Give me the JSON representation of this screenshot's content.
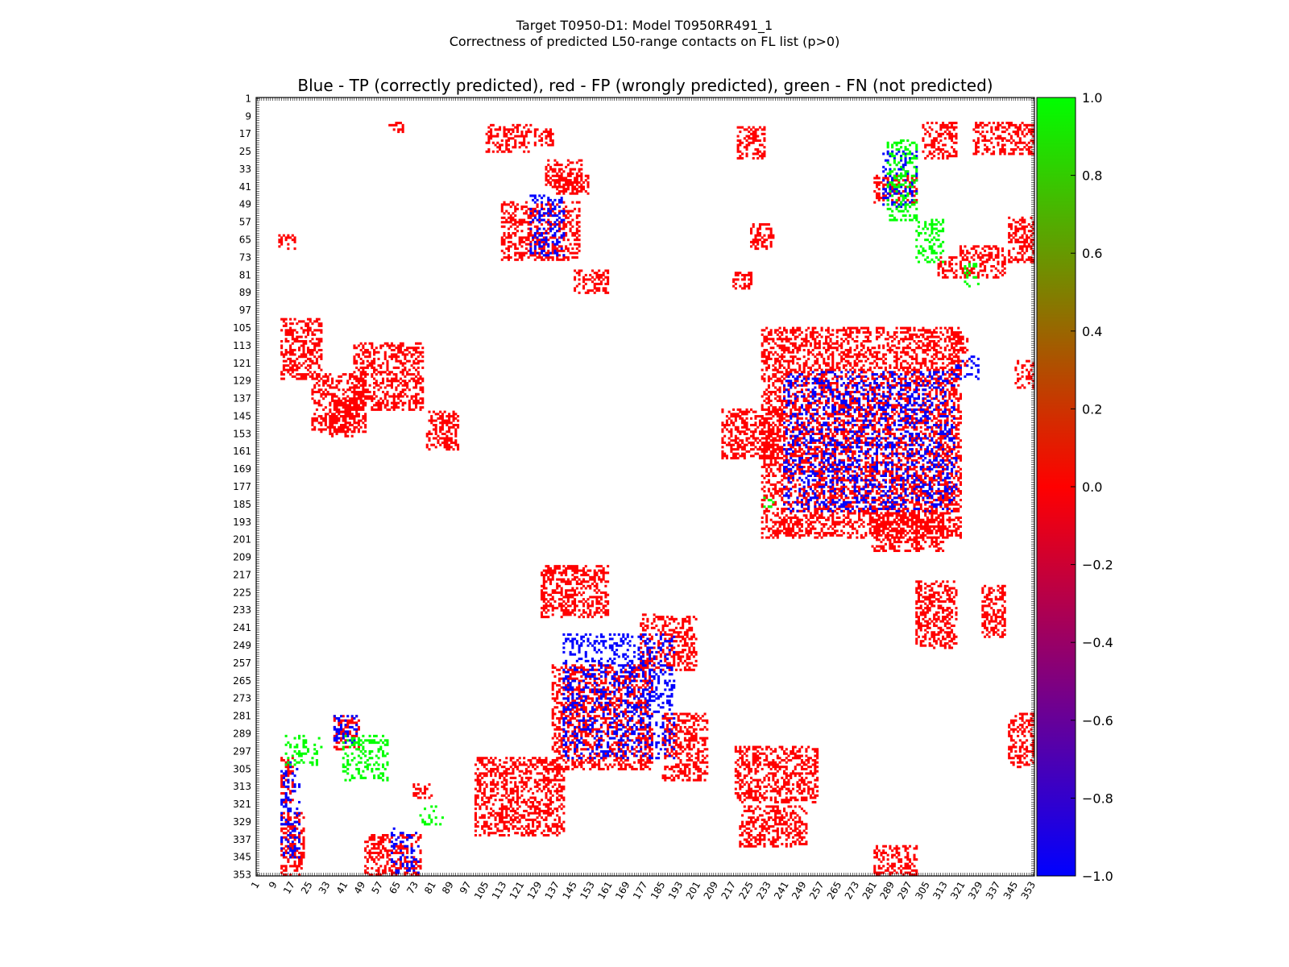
{
  "figure": {
    "title_line1": "Target T0950-D1: Model T0950RR491_1",
    "title_line2": "Correctness of predicted L50-range contacts on FL list (p>0)"
  },
  "colors": {
    "tp": "#0000ff",
    "fp": "#ff0000",
    "fn": "#00ff00",
    "frame": "#000000"
  },
  "chart_data": {
    "type": "heatmap",
    "title": "Blue - TP (correctly predicted), red - FP (wrongly predicted), green - FN (not predicted)",
    "xlabel": "",
    "ylabel": "",
    "xlim": [
      1,
      353
    ],
    "ylim": [
      1,
      353
    ],
    "y_axis_inverted": true,
    "tick_labels": [
      "1",
      "9",
      "17",
      "25",
      "33",
      "41",
      "49",
      "57",
      "65",
      "73",
      "81",
      "89",
      "97",
      "105",
      "113",
      "121",
      "129",
      "137",
      "145",
      "153",
      "161",
      "169",
      "177",
      "185",
      "193",
      "201",
      "209",
      "217",
      "225",
      "233",
      "241",
      "249",
      "257",
      "265",
      "273",
      "281",
      "289",
      "297",
      "305",
      "313",
      "321",
      "329",
      "337",
      "345",
      "353"
    ],
    "colorbar": {
      "min": -1.0,
      "max": 1.0,
      "ticks": [
        "1.0",
        "0.8",
        "0.6",
        "0.4",
        "0.2",
        "0.0",
        "−0.2",
        "−0.4",
        "−0.6",
        "−0.8",
        "−1.0"
      ],
      "colors": [
        "#0000ff",
        "#ff0000",
        "#00ff00"
      ]
    },
    "legend": [
      "TP (correctly predicted)",
      "FP (wrongly predicted)",
      "FN (not predicted)"
    ],
    "value_meaning": {
      "TP": -1,
      "FP": 0,
      "FN": 1
    },
    "regions": [
      {
        "kind": "FP",
        "x": [
          61,
          67
        ],
        "y": [
          12,
          16
        ]
      },
      {
        "kind": "FP",
        "x": [
          105,
          125
        ],
        "y": [
          13,
          25
        ]
      },
      {
        "kind": "FP",
        "x": [
          127,
          135
        ],
        "y": [
          15,
          22
        ]
      },
      {
        "kind": "FP",
        "x": [
          219,
          231
        ],
        "y": [
          14,
          28
        ]
      },
      {
        "kind": "FP",
        "x": [
          303,
          318
        ],
        "y": [
          12,
          28
        ]
      },
      {
        "kind": "FP",
        "x": [
          326,
          353
        ],
        "y": [
          12,
          26
        ]
      },
      {
        "kind": "FP",
        "x": [
          132,
          148
        ],
        "y": [
          29,
          42
        ]
      },
      {
        "kind": "FP",
        "x": [
          137,
          151
        ],
        "y": [
          36,
          44
        ]
      },
      {
        "kind": "FP",
        "x": [
          281,
          300
        ],
        "y": [
          36,
          48
        ]
      },
      {
        "kind": "FP",
        "x": [
          112,
          147
        ],
        "y": [
          48,
          74
        ]
      },
      {
        "kind": "FP",
        "x": [
          11,
          18
        ],
        "y": [
          63,
          69
        ]
      },
      {
        "kind": "FP",
        "x": [
          342,
          353
        ],
        "y": [
          55,
          75
        ]
      },
      {
        "kind": "FP",
        "x": [
          320,
          340
        ],
        "y": [
          68,
          82
        ]
      },
      {
        "kind": "FP",
        "x": [
          310,
          318
        ],
        "y": [
          73,
          82
        ]
      },
      {
        "kind": "FP",
        "x": [
          145,
          160
        ],
        "y": [
          79,
          89
        ]
      },
      {
        "kind": "FP",
        "x": [
          217,
          225
        ],
        "y": [
          80,
          87
        ]
      },
      {
        "kind": "FP",
        "x": [
          225,
          235
        ],
        "y": [
          58,
          69
        ]
      },
      {
        "kind": "FP",
        "x": [
          12,
          30
        ],
        "y": [
          101,
          128
        ]
      },
      {
        "kind": "FP",
        "x": [
          26,
          50
        ],
        "y": [
          126,
          152
        ]
      },
      {
        "kind": "FP",
        "x": [
          34,
          45
        ],
        "y": [
          137,
          154
        ]
      },
      {
        "kind": "FP",
        "x": [
          45,
          76
        ],
        "y": [
          112,
          142
        ]
      },
      {
        "kind": "FP",
        "x": [
          78,
          92
        ],
        "y": [
          143,
          160
        ]
      },
      {
        "kind": "FP",
        "x": [
          212,
          238
        ],
        "y": [
          142,
          164
        ]
      },
      {
        "kind": "FP",
        "x": [
          315,
          323
        ],
        "y": [
          108,
          122
        ]
      },
      {
        "kind": "FP",
        "x": [
          345,
          353
        ],
        "y": [
          120,
          132
        ]
      },
      {
        "kind": "FP",
        "x": [
          230,
          320
        ],
        "y": [
          105,
          200
        ]
      },
      {
        "kind": "FP",
        "x": [
          240,
          248
        ],
        "y": [
          192,
          199
        ]
      },
      {
        "kind": "FP",
        "x": [
          280,
          312
        ],
        "y": [
          187,
          206
        ]
      },
      {
        "kind": "FP",
        "x": [
          130,
          160
        ],
        "y": [
          213,
          236
        ]
      },
      {
        "kind": "FP",
        "x": [
          175,
          200
        ],
        "y": [
          235,
          260
        ]
      },
      {
        "kind": "FP",
        "x": [
          135,
          180
        ],
        "y": [
          258,
          305
        ]
      },
      {
        "kind": "FP",
        "x": [
          100,
          140
        ],
        "y": [
          300,
          335
        ]
      },
      {
        "kind": "FP",
        "x": [
          36,
          47
        ],
        "y": [
          281,
          296
        ]
      },
      {
        "kind": "FP",
        "x": [
          12,
          17
        ],
        "y": [
          300,
          320
        ]
      },
      {
        "kind": "FP",
        "x": [
          72,
          80
        ],
        "y": [
          312,
          318
        ]
      },
      {
        "kind": "FP",
        "x": [
          12,
          22
        ],
        "y": [
          325,
          353
        ]
      },
      {
        "kind": "FP",
        "x": [
          50,
          75
        ],
        "y": [
          335,
          353
        ]
      },
      {
        "kind": "FP",
        "x": [
          281,
          300
        ],
        "y": [
          340,
          353
        ]
      },
      {
        "kind": "FP",
        "x": [
          342,
          353
        ],
        "y": [
          280,
          304
        ]
      },
      {
        "kind": "FP",
        "x": [
          185,
          205
        ],
        "y": [
          280,
          310
        ]
      },
      {
        "kind": "FP",
        "x": [
          218,
          255
        ],
        "y": [
          295,
          320
        ]
      },
      {
        "kind": "FP",
        "x": [
          220,
          250
        ],
        "y": [
          322,
          340
        ]
      },
      {
        "kind": "FP",
        "x": [
          300,
          318
        ],
        "y": [
          220,
          250
        ]
      },
      {
        "kind": "FP",
        "x": [
          330,
          340
        ],
        "y": [
          222,
          245
        ]
      },
      {
        "kind": "TP",
        "x": [
          285,
          300
        ],
        "y": [
          25,
          50
        ]
      },
      {
        "kind": "TP",
        "x": [
          125,
          140
        ],
        "y": [
          45,
          72
        ]
      },
      {
        "kind": "TP",
        "x": [
          318,
          328
        ],
        "y": [
          118,
          128
        ]
      },
      {
        "kind": "TP",
        "x": [
          240,
          318
        ],
        "y": [
          125,
          188
        ]
      },
      {
        "kind": "TP",
        "x": [
          140,
          190
        ],
        "y": [
          244,
          300
        ]
      },
      {
        "kind": "TP",
        "x": [
          12,
          20
        ],
        "y": [
          302,
          345
        ]
      },
      {
        "kind": "TP",
        "x": [
          62,
          74
        ],
        "y": [
          332,
          352
        ]
      },
      {
        "kind": "TP",
        "x": [
          36,
          46
        ],
        "y": [
          281,
          293
        ]
      },
      {
        "kind": "FN",
        "x": [
          287,
          300
        ],
        "y": [
          20,
          56
        ]
      },
      {
        "kind": "FN",
        "x": [
          300,
          312
        ],
        "y": [
          56,
          75
        ]
      },
      {
        "kind": "FN",
        "x": [
          322,
          328
        ],
        "y": [
          76,
          86
        ]
      },
      {
        "kind": "FN",
        "x": [
          14,
          30
        ],
        "y": [
          290,
          303
        ]
      },
      {
        "kind": "FN",
        "x": [
          40,
          60
        ],
        "y": [
          290,
          310
        ]
      },
      {
        "kind": "FN",
        "x": [
          75,
          85
        ],
        "y": [
          322,
          330
        ]
      },
      {
        "kind": "FN",
        "x": [
          231,
          235
        ],
        "y": [
          182,
          186
        ]
      }
    ]
  }
}
